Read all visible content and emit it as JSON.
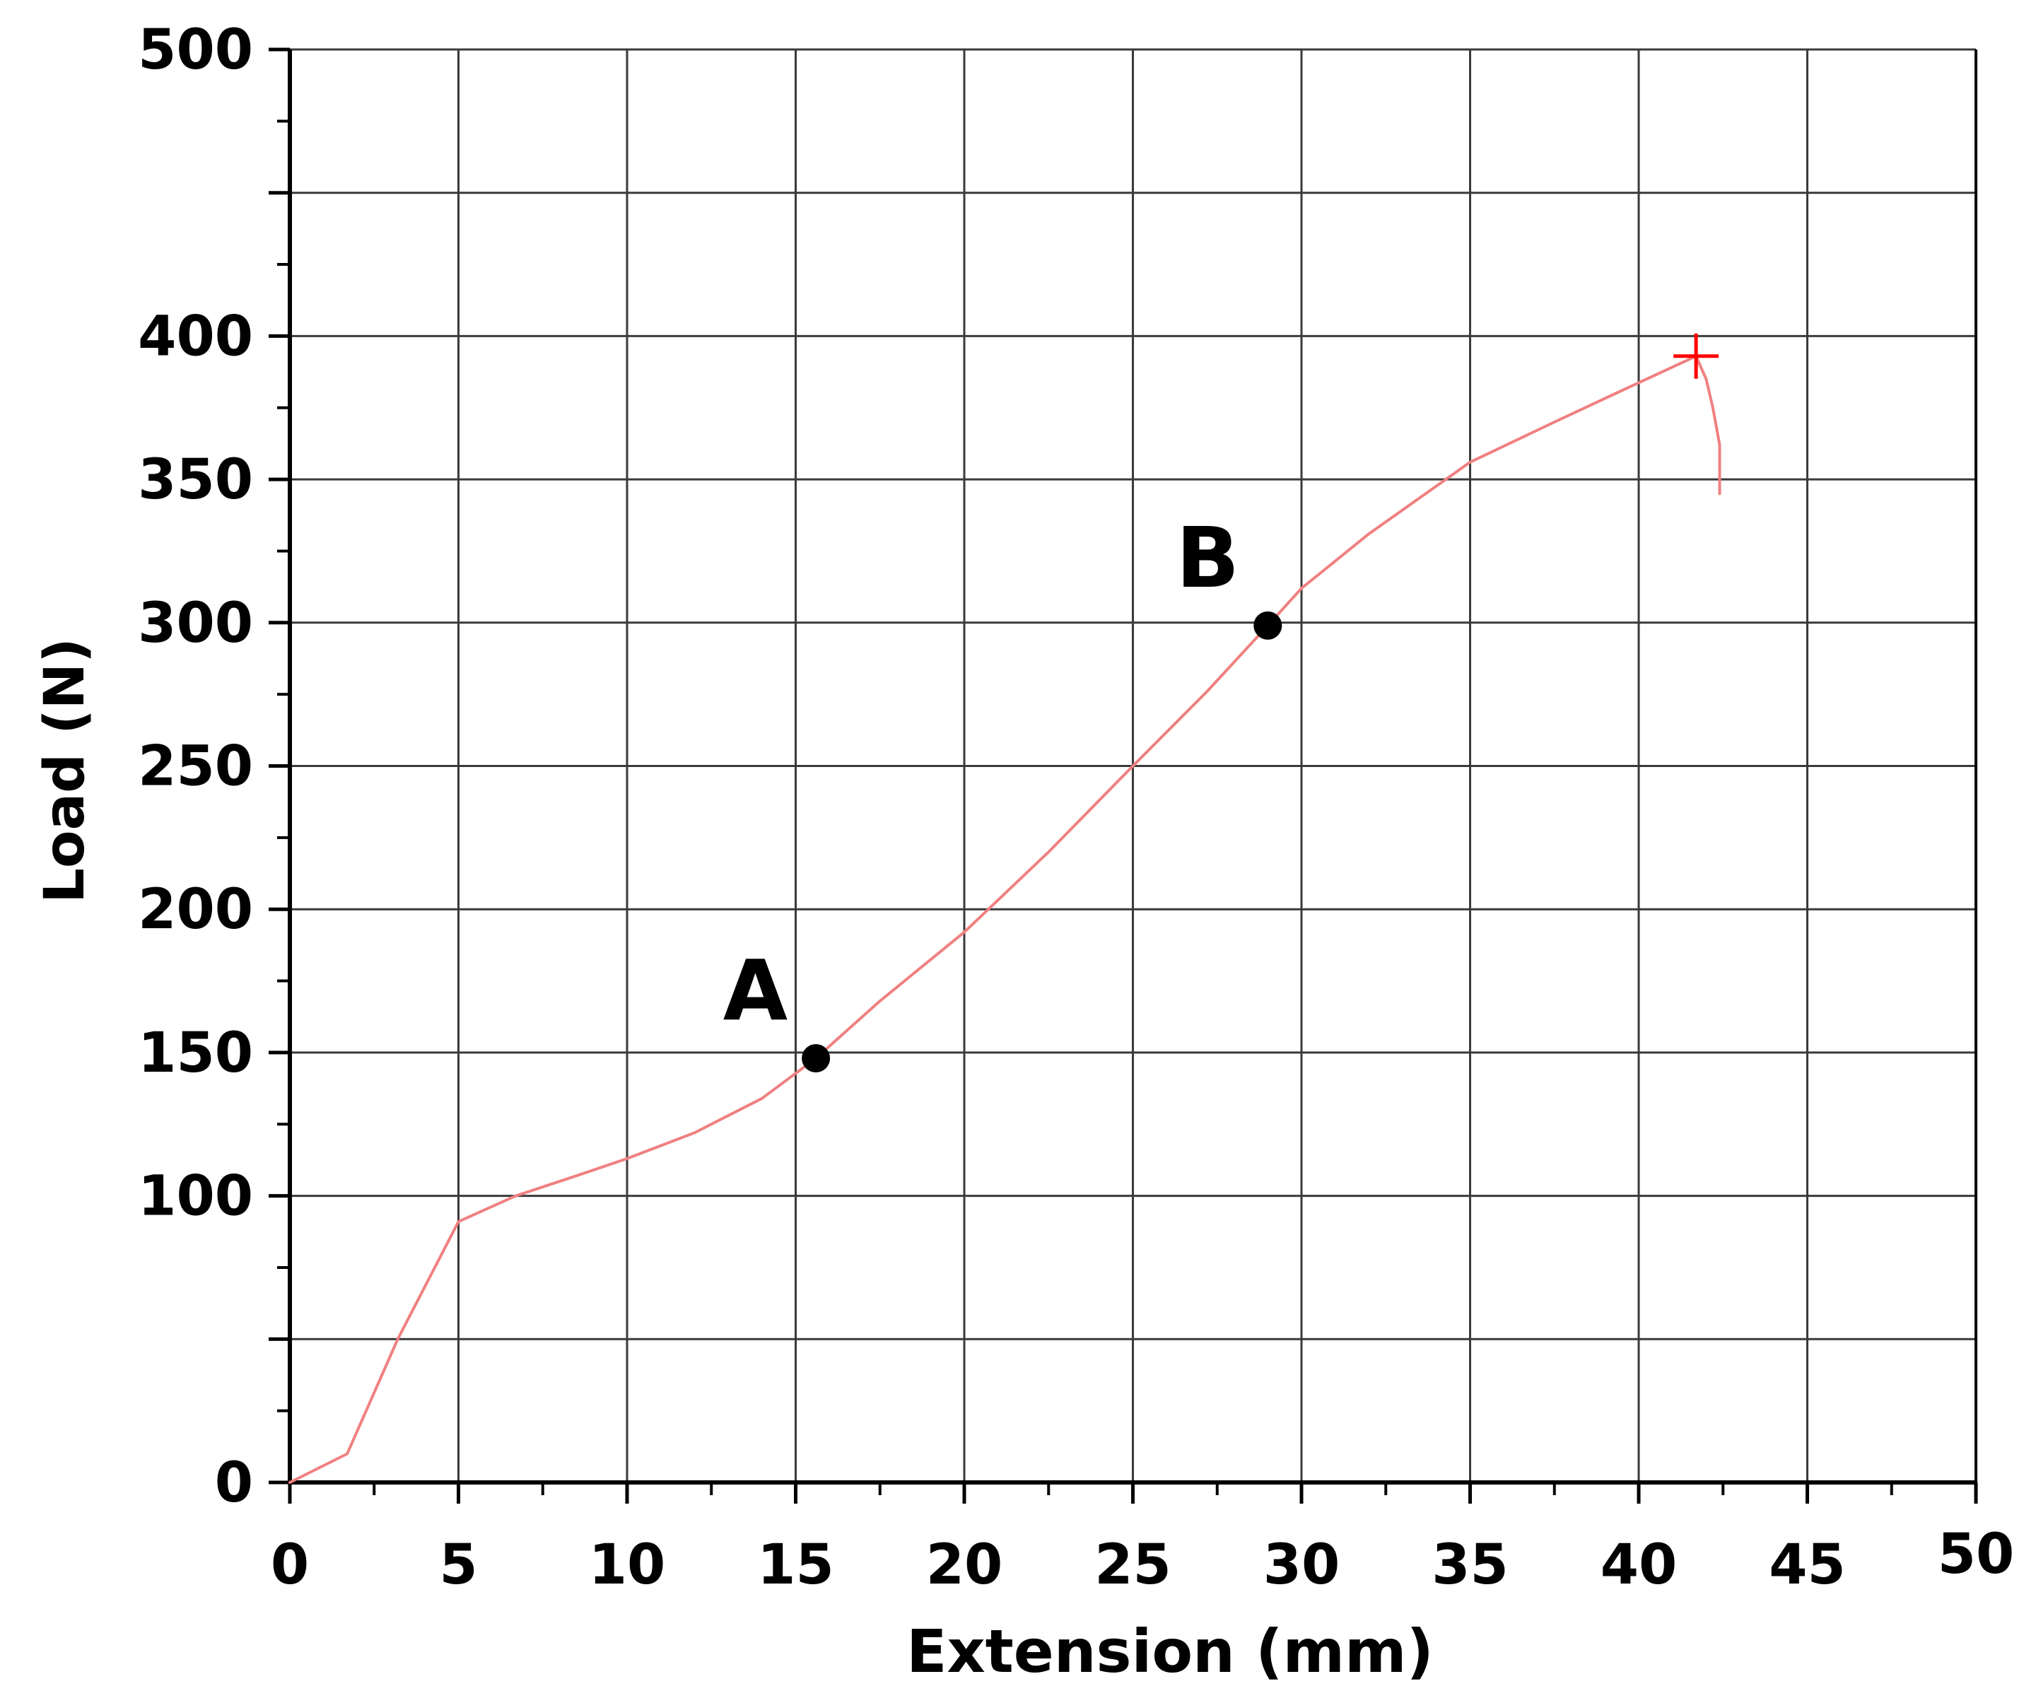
{
  "chart_data": {
    "type": "line",
    "title": "",
    "xlabel": "Extension (mm)",
    "ylabel": "Load (N)",
    "xlim": [
      0,
      50
    ],
    "ylim": [
      0,
      500
    ],
    "grid": true,
    "x_ticks": [
      0,
      5,
      10,
      15,
      20,
      25,
      30,
      35,
      40,
      45,
      50
    ],
    "y_ticks": [
      0,
      100,
      150,
      200,
      250,
      300,
      350,
      400,
      500
    ],
    "x_tick_labels": [
      "0",
      "5",
      "10",
      "15",
      "20",
      "25",
      "30",
      "35",
      "40",
      "45",
      "50"
    ],
    "y_tick_labels": [
      "0",
      "100",
      "150",
      "200",
      "250",
      "300",
      "350",
      "400",
      "500"
    ],
    "series": [
      {
        "color": "#f08080",
        "x": [
          0,
          1.7,
          3.2,
          5.0,
          6.7,
          8.5,
          10.0,
          12.0,
          14.0,
          15.6,
          17.5,
          20.0,
          22.5,
          25.0,
          27.2,
          29.0,
          30.0,
          32.0,
          35.0,
          37.5,
          39.5,
          41.7,
          42.0,
          42.2,
          42.4,
          42.4
        ],
        "y": [
          0,
          10,
          50,
          91,
          100,
          107,
          113,
          122,
          134,
          148,
          168,
          192,
          220,
          250,
          276,
          299,
          312,
          331,
          356,
          370,
          381,
          393,
          385,
          375,
          362,
          345
        ]
      }
    ],
    "annotations": [
      {
        "label": "A",
        "x": 15.6,
        "y": 148,
        "marker": "dot",
        "color": "#000000"
      },
      {
        "label": "B",
        "x": 29.0,
        "y": 299,
        "marker": "dot",
        "color": "#000000"
      },
      {
        "label": "",
        "x": 41.7,
        "y": 393,
        "marker": "cross",
        "color": "#ff0000"
      }
    ]
  }
}
